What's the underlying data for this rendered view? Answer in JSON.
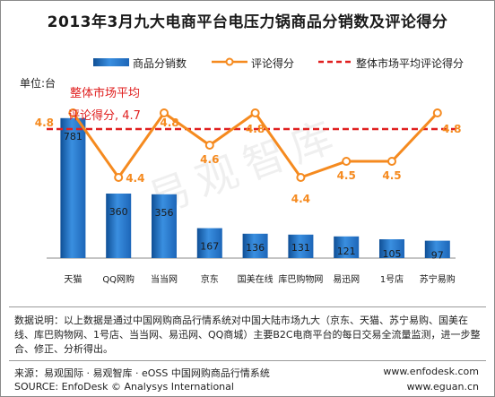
{
  "title": "2013年3月九大电商平台电压力锅商品分销数及评论得分",
  "unit_label": "单位:台",
  "legend": {
    "bar": "商品分销数",
    "line": "评论得分",
    "avg": "整体市场平均评论得分"
  },
  "avg_annotation": {
    "line1": "整体市场平均",
    "line2": "评论得分, 4.7"
  },
  "chart_data": {
    "type": "bar",
    "categories": [
      "天猫",
      "QQ网购",
      "当当网",
      "京东",
      "国美在线",
      "库巴购物网",
      "易迅网",
      "1号店",
      "苏宁易购"
    ],
    "series": [
      {
        "name": "商品分销数",
        "type": "bar",
        "values": [
          781,
          360,
          356,
          167,
          136,
          131,
          121,
          105,
          97
        ]
      },
      {
        "name": "评论得分",
        "type": "line",
        "values": [
          4.8,
          4.4,
          4.8,
          4.6,
          4.8,
          4.4,
          4.5,
          4.5,
          4.8
        ]
      },
      {
        "name": "整体市场平均评论得分",
        "type": "reference-line",
        "value": 4.7
      }
    ],
    "ylim_bar": [
      0,
      900
    ],
    "ylim_line": [
      3.9,
      4.9
    ],
    "colors": {
      "bar": "#2a7fd0",
      "line": "#f58a1f",
      "avg": "#e02020"
    }
  },
  "watermark": "易观智库",
  "note": "数据说明：以上数据是通过中国网购商品行情系统对中国大陆市场九大（京东、天猫、苏宁易购、国美在线、库巴购物网、1号店、当当网、易迅网、QQ商城）主要B2C电商平台的每日交易全流量监测，进一步整合、修正、分析得出。",
  "source_cn": "来源：易观国际 · 易观智库 · eOSS 中国网购商品行情系统",
  "source_en": "SOURCE: EnfoDesk © Analysys International",
  "site1": "www.enfodesk.com",
  "site2": "www.eguan.cn"
}
